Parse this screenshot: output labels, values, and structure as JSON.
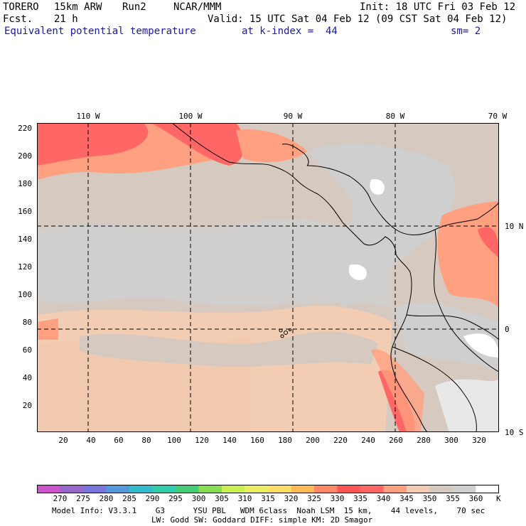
{
  "header": {
    "model": "TORERO",
    "resolution": "15km ARW",
    "run": "Run2",
    "org": "NCAR/MMM",
    "init": "Init: 18 UTC Fri 03 Feb 12",
    "fcst_label": "Fcst.",
    "fcst_value": "21 h",
    "valid": "Valid: 15 UTC Sat 04 Feb 12 (09 CST Sat 04 Feb 12)",
    "field": "Equivalent potential temperature",
    "level": "at k-index =  44",
    "smoothing": "sm= 2"
  },
  "map": {
    "lon_labels": [
      "110 W",
      "100 W",
      "90 W",
      "80 W",
      "70 W"
    ],
    "lat_labels": [
      "10 N",
      "0",
      "10 S"
    ],
    "x_ticks": [
      "20",
      "40",
      "60",
      "80",
      "100",
      "120",
      "140",
      "160",
      "180",
      "200",
      "220",
      "240",
      "260",
      "280",
      "300",
      "320"
    ],
    "y_ticks": [
      "220",
      "200",
      "180",
      "160",
      "140",
      "120",
      "100",
      "80",
      "60",
      "40",
      "20"
    ],
    "x_range": [
      1,
      333
    ],
    "y_range": [
      1,
      223
    ]
  },
  "colorbar": {
    "unit": "K",
    "labels": [
      "270",
      "275",
      "280",
      "285",
      "290",
      "295",
      "300",
      "305",
      "310",
      "315",
      "320",
      "325",
      "330",
      "335",
      "340",
      "345",
      "350",
      "355",
      "360"
    ],
    "colors": [
      "#cc55cc",
      "#9966cc",
      "#7777dd",
      "#5599dd",
      "#33bbcc",
      "#33ccaa",
      "#44cc77",
      "#88dd55",
      "#ccee55",
      "#eeee66",
      "#ffdd66",
      "#ffbb55",
      "#ff8866",
      "#ff5555",
      "#ff6666",
      "#ffa080",
      "#f2cdb4",
      "#d6c9c0",
      "#cfcfcf",
      "#ffffff"
    ],
    "field_colors": {
      "land_outline": "#000000",
      "grid": "#000000"
    }
  },
  "footer": {
    "line1": "Model Info: V3.3.1    G3      YSU PBL   WDM 6class  Noah LSM  15 km,    44 levels,    70 sec",
    "line2": "LW: Godd SW: Goddard DIFF: simple KM: 2D Smagor"
  }
}
